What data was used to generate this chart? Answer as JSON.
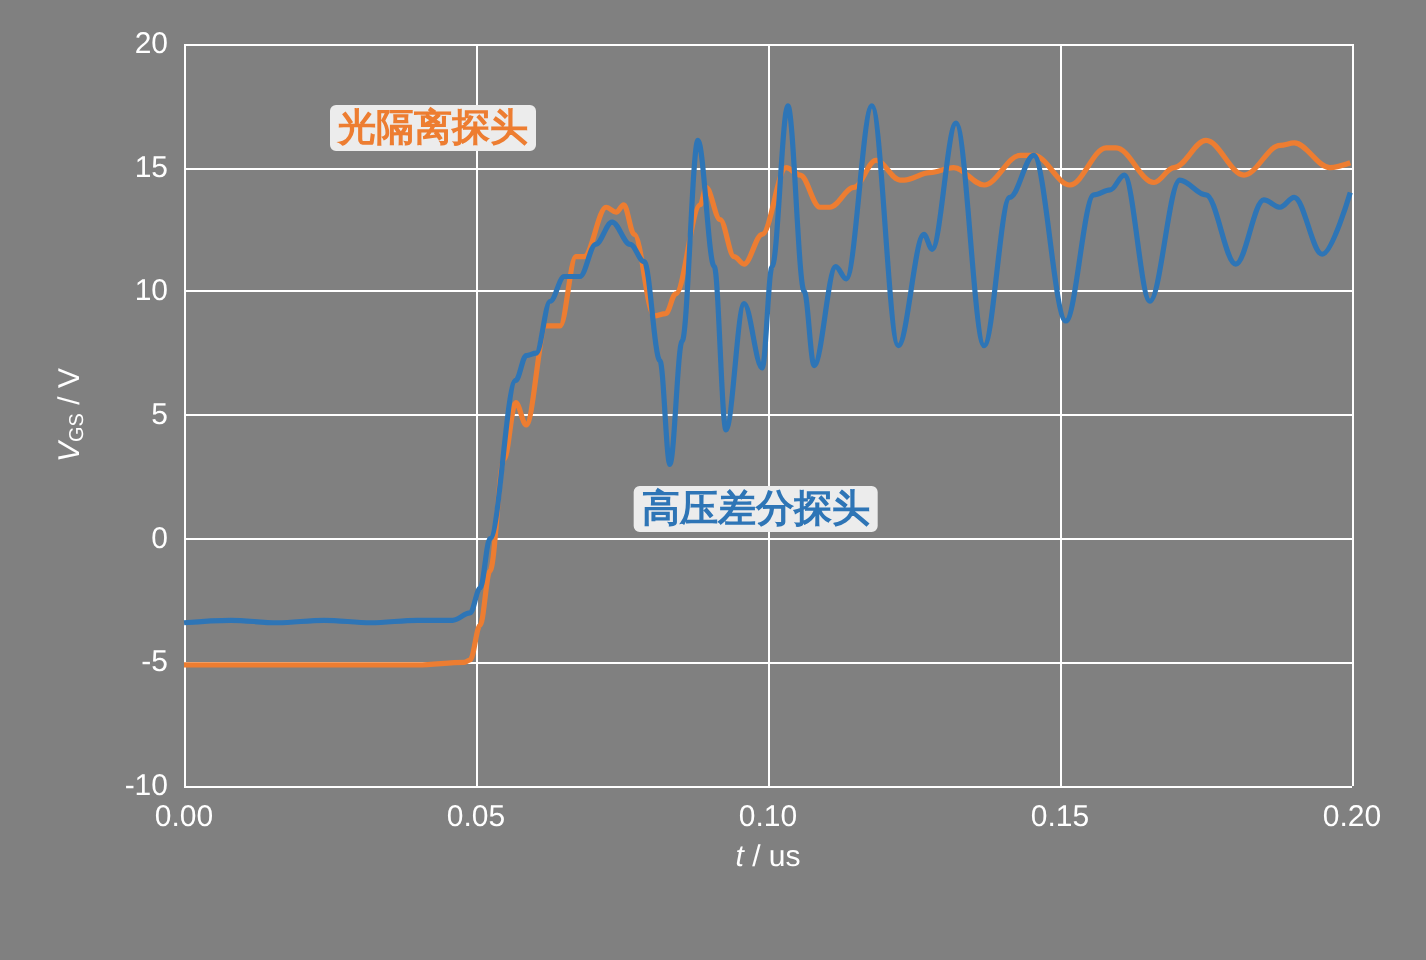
{
  "chart_data": {
    "type": "line",
    "xlabel": "t / us",
    "ylabel": "V$_{GS}$ / V",
    "xlim": [
      0,
      0.2
    ],
    "xticks": [
      {
        "value": 0,
        "label": "0.00"
      },
      {
        "value": 0.05,
        "label": "0.05"
      },
      {
        "value": 0.1,
        "label": "0.10"
      },
      {
        "value": 0.15,
        "label": "0.15"
      },
      {
        "value": 0.2,
        "label": "0.20"
      }
    ],
    "ylim": [
      -10,
      20
    ],
    "yticks": [
      -10,
      -5,
      0,
      5,
      10,
      15,
      20
    ],
    "grid": true,
    "legend": false,
    "marker": "none",
    "line_style": "solid",
    "series": [
      {
        "name": "光隔离探头",
        "color": "#ed7d31",
        "x": [
          0,
          0.01,
          0.02,
          0.03,
          0.04,
          0.048,
          0.049,
          0.0507,
          0.0524,
          0.0548,
          0.0568,
          0.0586,
          0.062,
          0.0644,
          0.0671,
          0.0685,
          0.0723,
          0.074,
          0.0753,
          0.0771,
          0.0805,
          0.0825,
          0.0842,
          0.0884,
          0.0894,
          0.0918,
          0.0942,
          0.0959,
          0.099,
          0.1031,
          0.1055,
          0.1089,
          0.1106,
          0.1147,
          0.1185,
          0.1226,
          0.1233,
          0.1277,
          0.1318,
          0.137,
          0.1432,
          0.1455,
          0.1517,
          0.1579,
          0.1596,
          0.1661,
          0.1695,
          0.175,
          0.1815,
          0.1877,
          0.1901,
          0.1962,
          0.1997
        ],
        "values": [
          -5.1,
          -5.1,
          -5.1,
          -5.1,
          -5.1,
          -5.0,
          -4.9,
          -3.5,
          -1.3,
          3.2,
          5.5,
          4.6,
          8.6,
          8.6,
          11.4,
          11.4,
          13.4,
          13.2,
          13.5,
          12.3,
          9.0,
          9.1,
          9.9,
          13.5,
          14.2,
          12.9,
          11.4,
          11.1,
          12.3,
          15.0,
          14.7,
          13.4,
          13.4,
          14.2,
          15.3,
          14.5,
          14.5,
          14.8,
          15.0,
          14.3,
          15.5,
          15.5,
          14.3,
          15.8,
          15.8,
          14.4,
          15.0,
          16.1,
          14.7,
          15.9,
          16.0,
          15.0,
          15.2
        ]
      },
      {
        "name": "高压差分探头",
        "color": "#2e75b6",
        "x": [
          0,
          0.008,
          0.016,
          0.024,
          0.032,
          0.04,
          0.046,
          0.049,
          0.0507,
          0.0524,
          0.0568,
          0.0586,
          0.0603,
          0.0627,
          0.0651,
          0.0678,
          0.0705,
          0.0733,
          0.0764,
          0.0788,
          0.0815,
          0.0832,
          0.0853,
          0.088,
          0.0908,
          0.0928,
          0.0959,
          0.099,
          0.1007,
          0.1034,
          0.1062,
          0.1079,
          0.1116,
          0.1134,
          0.1178,
          0.1223,
          0.1267,
          0.1281,
          0.1322,
          0.137,
          0.1414,
          0.1455,
          0.151,
          0.1558,
          0.1586,
          0.161,
          0.1654,
          0.1705,
          0.175,
          0.1801,
          0.1849,
          0.1877,
          0.1901,
          0.1949,
          0.1997
        ],
        "values": [
          -3.4,
          -3.3,
          -3.4,
          -3.3,
          -3.4,
          -3.3,
          -3.3,
          -3.0,
          -2.0,
          0,
          6.4,
          7.4,
          7.5,
          9.6,
          10.6,
          10.6,
          11.9,
          12.8,
          11.9,
          11.2,
          7.2,
          3.0,
          8.0,
          16.1,
          11.0,
          4.4,
          9.5,
          6.9,
          11.0,
          17.5,
          10.0,
          7.0,
          11.0,
          10.5,
          17.5,
          7.8,
          12.3,
          11.7,
          16.8,
          7.8,
          13.8,
          15.5,
          8.8,
          13.9,
          14.1,
          14.7,
          9.6,
          14.5,
          13.9,
          11.1,
          13.7,
          13.4,
          13.8,
          11.5,
          14.0
        ]
      }
    ]
  }
}
